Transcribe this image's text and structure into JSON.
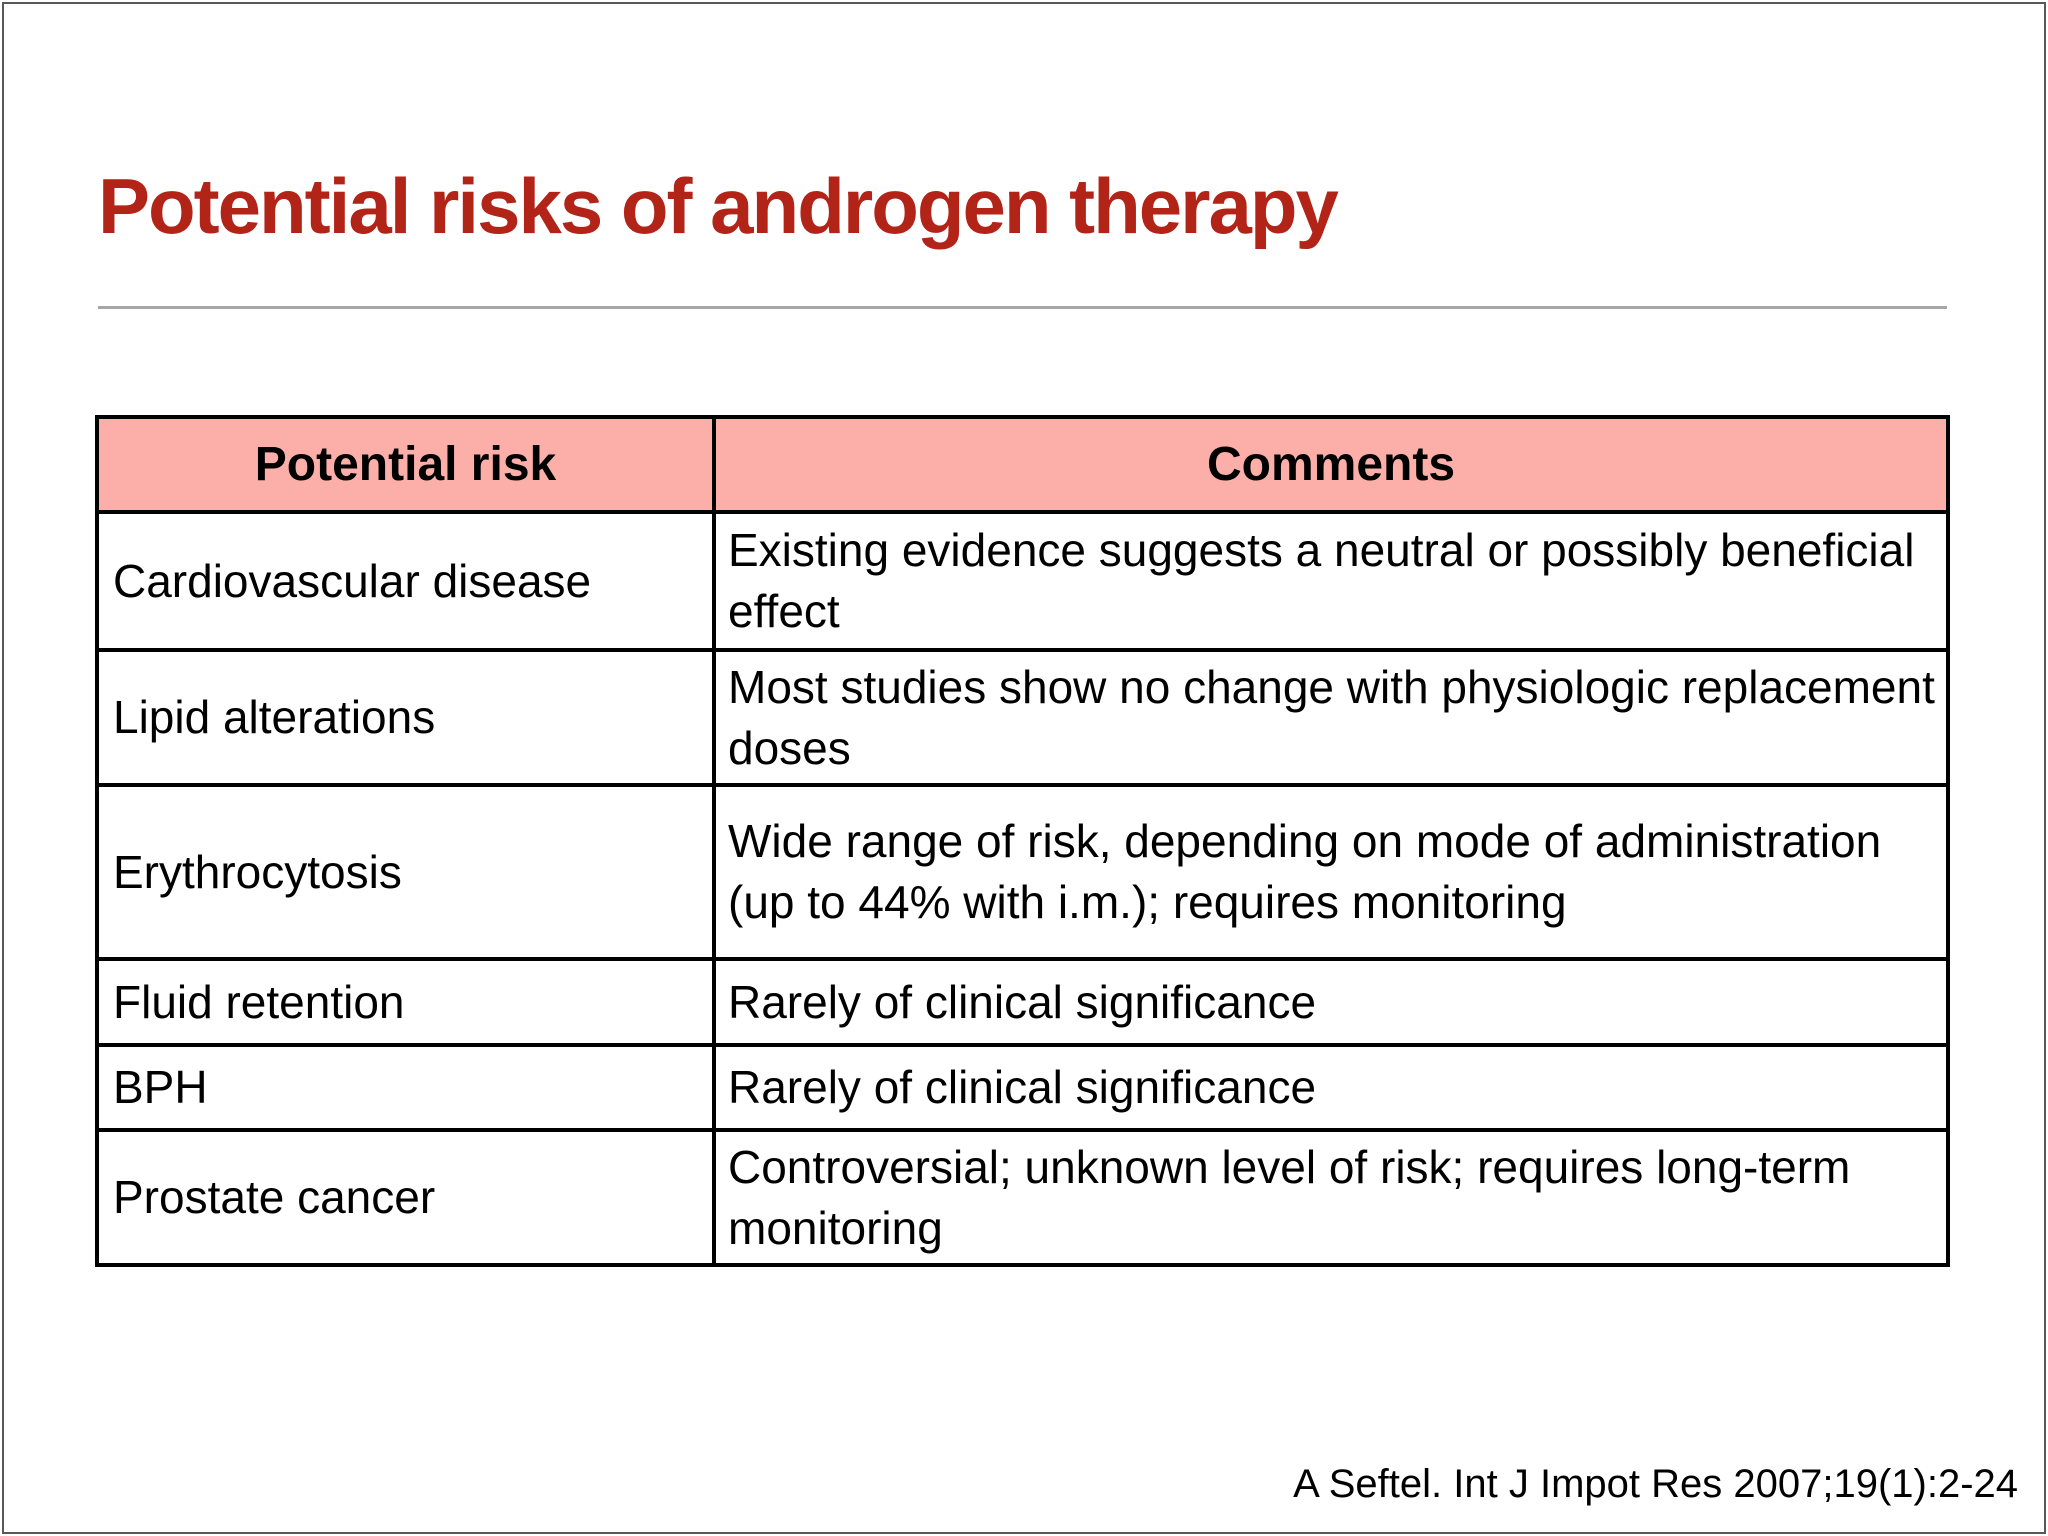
{
  "slide": {
    "title": "Potential risks of androgen therapy",
    "citation": "A Seftel. Int J Impot Res 2007;19(1):2-24",
    "colors": {
      "title_red": "#b22318",
      "header_pink": "#fbafa8",
      "table_border": "#000000",
      "rule_gray": "#a6a6a6",
      "frame_gray": "#58585a"
    }
  },
  "table": {
    "headers": [
      "Potential risk",
      "Comments"
    ],
    "rows": [
      {
        "risk": "Cardiovascular disease",
        "comment": "Existing evidence suggests a neutral or possibly beneficial effect"
      },
      {
        "risk": "Lipid alterations",
        "comment": "Most studies show no change with physiologic replacement doses"
      },
      {
        "risk": "Erythrocytosis",
        "comment": "Wide range of risk, depending on mode of administration (up to 44% with i.m.); requires monitoring"
      },
      {
        "risk": "Fluid retention",
        "comment": "Rarely of clinical significance"
      },
      {
        "risk": "BPH",
        "comment": "Rarely of clinical significance"
      },
      {
        "risk": "Prostate cancer",
        "comment": "Controversial; unknown level of risk; requires long-term monitoring"
      }
    ]
  }
}
